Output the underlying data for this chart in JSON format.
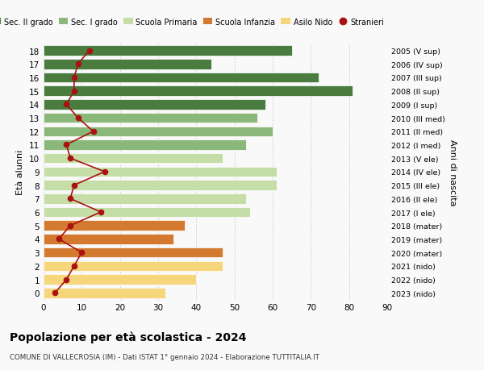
{
  "ages": [
    18,
    17,
    16,
    15,
    14,
    13,
    12,
    11,
    10,
    9,
    8,
    7,
    6,
    5,
    4,
    3,
    2,
    1,
    0
  ],
  "bar_values": [
    65,
    44,
    72,
    81,
    58,
    56,
    60,
    53,
    47,
    61,
    61,
    53,
    54,
    37,
    34,
    47,
    47,
    40,
    32
  ],
  "stranieri": [
    12,
    9,
    8,
    8,
    6,
    9,
    13,
    6,
    7,
    16,
    8,
    7,
    15,
    7,
    4,
    10,
    8,
    6,
    3
  ],
  "right_labels_by_age": {
    "18": "2005 (V sup)",
    "17": "2006 (IV sup)",
    "16": "2007 (III sup)",
    "15": "2008 (II sup)",
    "14": "2009 (I sup)",
    "13": "2010 (III med)",
    "12": "2011 (II med)",
    "11": "2012 (I med)",
    "10": "2013 (V ele)",
    "9": "2014 (IV ele)",
    "8": "2015 (III ele)",
    "7": "2016 (II ele)",
    "6": "2017 (I ele)",
    "5": "2018 (mater)",
    "4": "2019 (mater)",
    "3": "2020 (mater)",
    "2": "2021 (nido)",
    "1": "2022 (nido)",
    "0": "2023 (nido)"
  },
  "color_per_age": [
    "#4a7c3f",
    "#4a7c3f",
    "#4a7c3f",
    "#4a7c3f",
    "#4a7c3f",
    "#8ab87a",
    "#8ab87a",
    "#8ab87a",
    "#c5dea8",
    "#c5dea8",
    "#c5dea8",
    "#c5dea8",
    "#c5dea8",
    "#d47a30",
    "#d47a30",
    "#d47a30",
    "#f5d67a",
    "#f5d67a",
    "#f5d67a"
  ],
  "stranieri_color": "#aa1111",
  "title": "Popolazione per età scolastica - 2024",
  "subtitle": "COMUNE DI VALLECROSIA (IM) - Dati ISTAT 1° gennaio 2024 - Elaborazione TUTTITALIA.IT",
  "ylabel": "Età alunni",
  "ylabel2": "Anni di nascita",
  "xlim": [
    0,
    90
  ],
  "xticks": [
    0,
    10,
    20,
    30,
    40,
    50,
    60,
    70,
    80,
    90
  ],
  "legend_labels": [
    "Sec. II grado",
    "Sec. I grado",
    "Scuola Primaria",
    "Scuola Infanzia",
    "Asilo Nido",
    "Stranieri"
  ],
  "legend_colors": [
    "#4a7c3f",
    "#8ab87a",
    "#c5dea8",
    "#d47a30",
    "#f5d67a",
    "#aa1111"
  ],
  "bg_color": "#f9f9f9"
}
